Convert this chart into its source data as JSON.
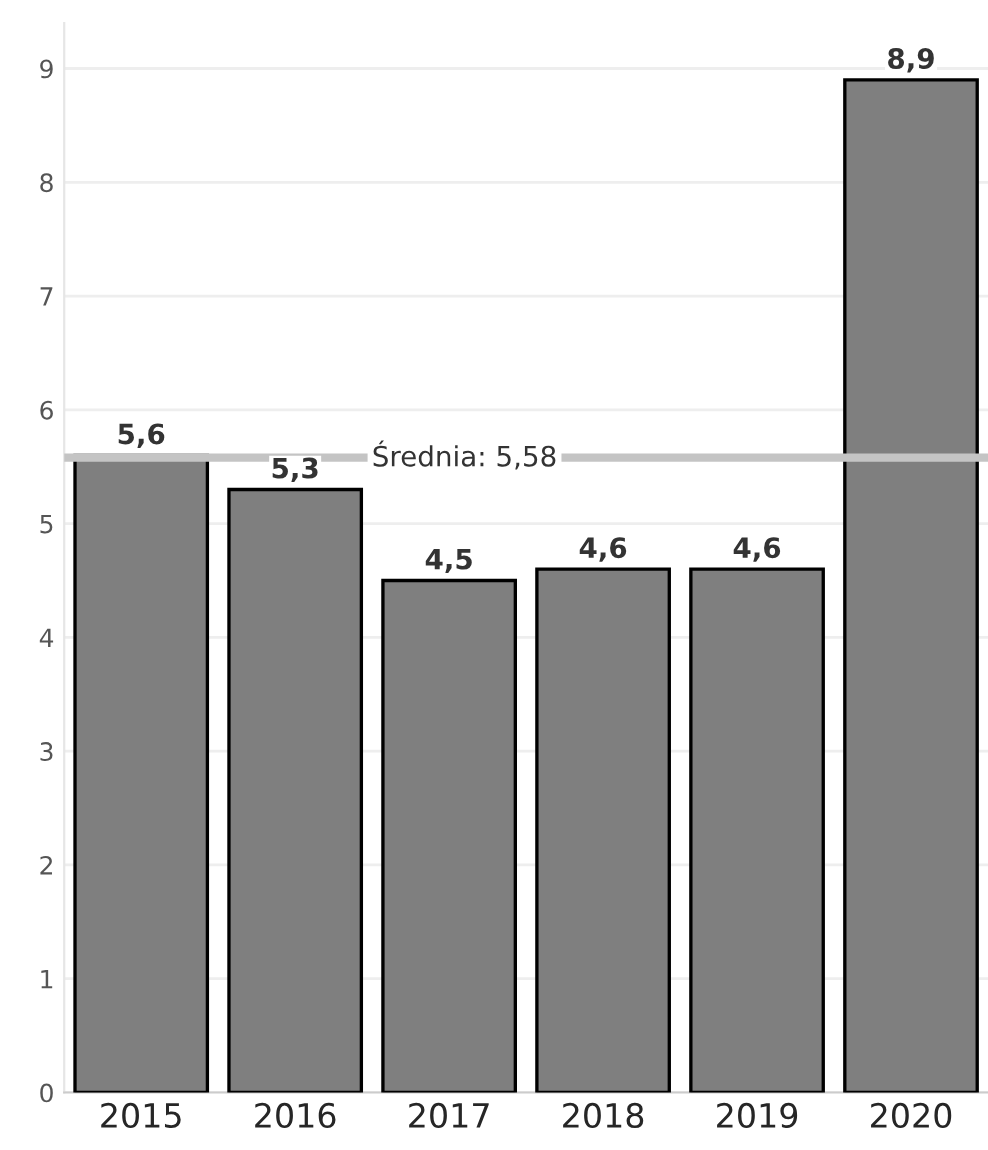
{
  "chart_data": {
    "type": "bar",
    "categories": [
      "2015",
      "2016",
      "2017",
      "2018",
      "2019",
      "2020"
    ],
    "values": [
      5.6,
      5.3,
      4.5,
      4.6,
      4.6,
      8.9
    ],
    "value_labels": [
      "5,6",
      "5,3",
      "4,5",
      "4,6",
      "4,6",
      "8,9"
    ],
    "color": "#7f7f7f",
    "ylim": [
      0,
      9.4
    ],
    "yticks": [
      0,
      1,
      2,
      3,
      4,
      5,
      6,
      7,
      8,
      9
    ],
    "grid": "y",
    "ref_lines": [
      {
        "axis": "y",
        "value": 5.58,
        "label": "Średnia: 5,58",
        "color": "#c4c4c4"
      }
    ]
  }
}
